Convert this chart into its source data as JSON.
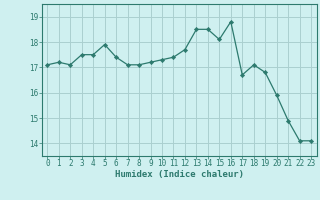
{
  "x": [
    0,
    1,
    2,
    3,
    4,
    5,
    6,
    7,
    8,
    9,
    10,
    11,
    12,
    13,
    14,
    15,
    16,
    17,
    18,
    19,
    20,
    21,
    22,
    23
  ],
  "y": [
    17.1,
    17.2,
    17.1,
    17.5,
    17.5,
    17.9,
    17.4,
    17.1,
    17.1,
    17.2,
    17.3,
    17.4,
    17.7,
    18.5,
    18.5,
    18.1,
    18.8,
    16.7,
    17.1,
    16.8,
    15.9,
    14.9,
    14.1,
    14.1
  ],
  "line_color": "#2d7a6e",
  "marker": "D",
  "marker_size": 2.2,
  "bg_color": "#cff0f0",
  "grid_color": "#aacfcf",
  "xlabel": "Humidex (Indice chaleur)",
  "xlim": [
    -0.5,
    23.5
  ],
  "ylim": [
    13.5,
    19.5
  ],
  "yticks": [
    14,
    15,
    16,
    17,
    18,
    19
  ],
  "xticks": [
    0,
    1,
    2,
    3,
    4,
    5,
    6,
    7,
    8,
    9,
    10,
    11,
    12,
    13,
    14,
    15,
    16,
    17,
    18,
    19,
    20,
    21,
    22,
    23
  ],
  "tick_color": "#2d7a6e",
  "label_color": "#2d7a6e",
  "axis_color": "#2d7a6e",
  "tick_fontsize": 5.5,
  "xlabel_fontsize": 6.5
}
